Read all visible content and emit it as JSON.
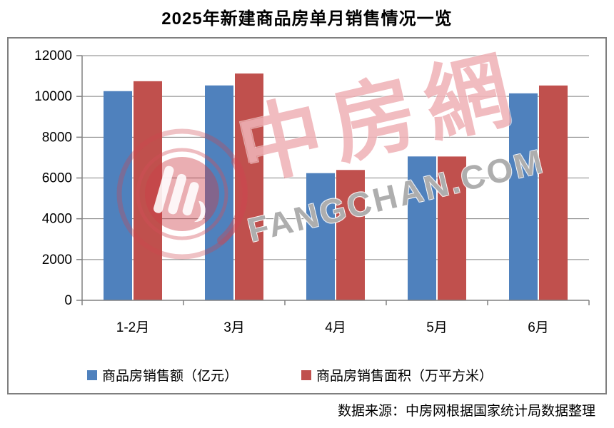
{
  "title": "2025年新建商品房单月销售情况一览",
  "source": "数据来源：中房网根据国家统计局数据整理",
  "watermark": {
    "cn_text": "中房網",
    "latin_text": "FANGCHAN.COM"
  },
  "colors": {
    "series_blue": "#4F81BD",
    "series_red": "#C0504D",
    "axis": "#808080",
    "grid": "#808080",
    "chart_border": "#7F7F7F"
  },
  "chart_data": {
    "type": "bar",
    "title": "2025年新建商品房单月销售情况一览",
    "categories": [
      "1-2月",
      "3月",
      "4月",
      "5月",
      "6月"
    ],
    "series": [
      {
        "name": "商品房销售额（亿元）",
        "color": "#4F81BD",
        "values": [
          10259,
          10539,
          6237,
          7056,
          10150
        ]
      },
      {
        "name": "商品房销售面积（万平方米）",
        "color": "#C0504D",
        "values": [
          10746,
          11123,
          6393,
          7053,
          10536
        ]
      }
    ],
    "xlabel": "",
    "ylabel": "",
    "ylim": [
      0,
      12000
    ],
    "ytick_step": 2000,
    "yticks": [
      0,
      2000,
      4000,
      6000,
      8000,
      10000,
      12000
    ],
    "grid": true,
    "legend_position": "bottom"
  }
}
